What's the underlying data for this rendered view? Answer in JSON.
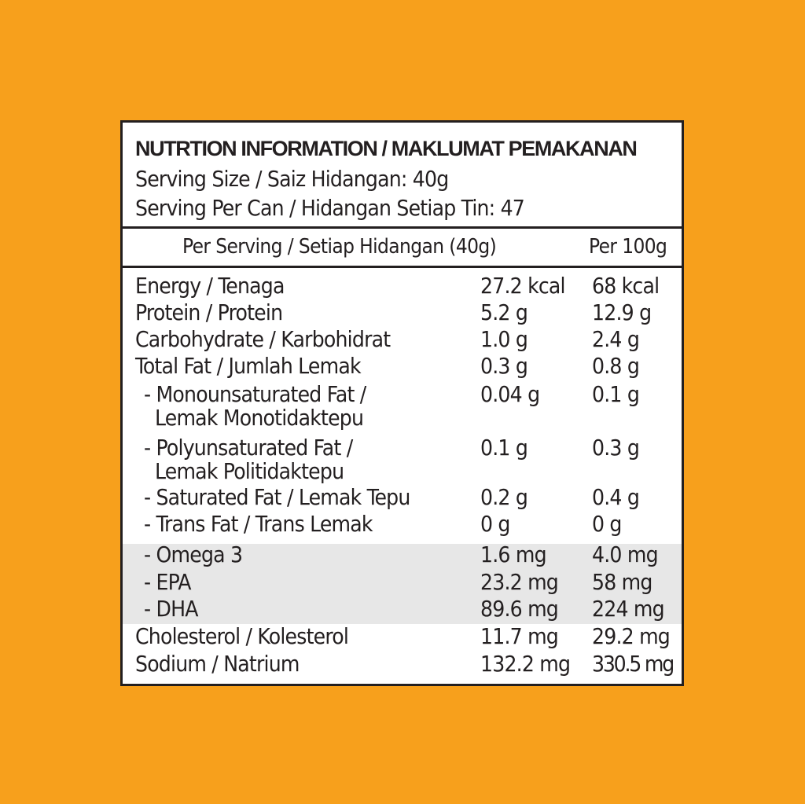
{
  "header": {
    "title": "NUTRTION INFORMATION / MAKLUMAT PEMAKANAN",
    "serving_size": "Serving Size / Saiz Hidangan: 40g",
    "serving_per_can": "Serving Per Can / Hidangan Setiap Tin: 47"
  },
  "columns": {
    "per_serving": "Per Serving / Setiap Hidangan (40g)",
    "per_100g": "Per 100g"
  },
  "rows": [
    {
      "name": "Energy / Tenaga",
      "per_serving": "27.2 kcal",
      "per_100g": "68 kcal"
    },
    {
      "name": "Protein / Protein",
      "per_serving": "5.2 g",
      "per_100g": "12.9 g"
    },
    {
      "name": "Carbohydrate / Karbohidrat",
      "per_serving": "1.0 g",
      "per_100g": "2.4 g"
    },
    {
      "name": "Total Fat / Jumlah Lemak",
      "per_serving": "0.3 g",
      "per_100g": "0.8 g"
    },
    {
      "name": "- Monounsaturated Fat /",
      "name2": "Lemak Monotidaktepu",
      "per_serving": "0.04 g",
      "per_100g": "0.1 g"
    },
    {
      "name": "- Polyunsaturated Fat /",
      "name2": "Lemak Politidaktepu",
      "per_serving": "0.1 g",
      "per_100g": "0.3 g"
    },
    {
      "name": "- Saturated Fat / Lemak Tepu",
      "per_serving": "0.2 g",
      "per_100g": "0.4 g"
    },
    {
      "name": "- Trans Fat / Trans Lemak",
      "per_serving": "0 g",
      "per_100g": "0 g"
    },
    {
      "name": "- Omega 3",
      "per_serving": "1.6 mg",
      "per_100g": "4.0 mg"
    },
    {
      "name": "- EPA",
      "per_serving": "23.2 mg",
      "per_100g": "58 mg"
    },
    {
      "name": "- DHA",
      "per_serving": "89.6 mg",
      "per_100g": "224 mg"
    },
    {
      "name": "Cholesterol / Kolesterol",
      "per_serving": "11.7 mg",
      "per_100g": "29.2 mg"
    },
    {
      "name": "Sodium / Natrium",
      "per_serving": "132.2 mg",
      "per_100g": "330.5 mg"
    }
  ]
}
